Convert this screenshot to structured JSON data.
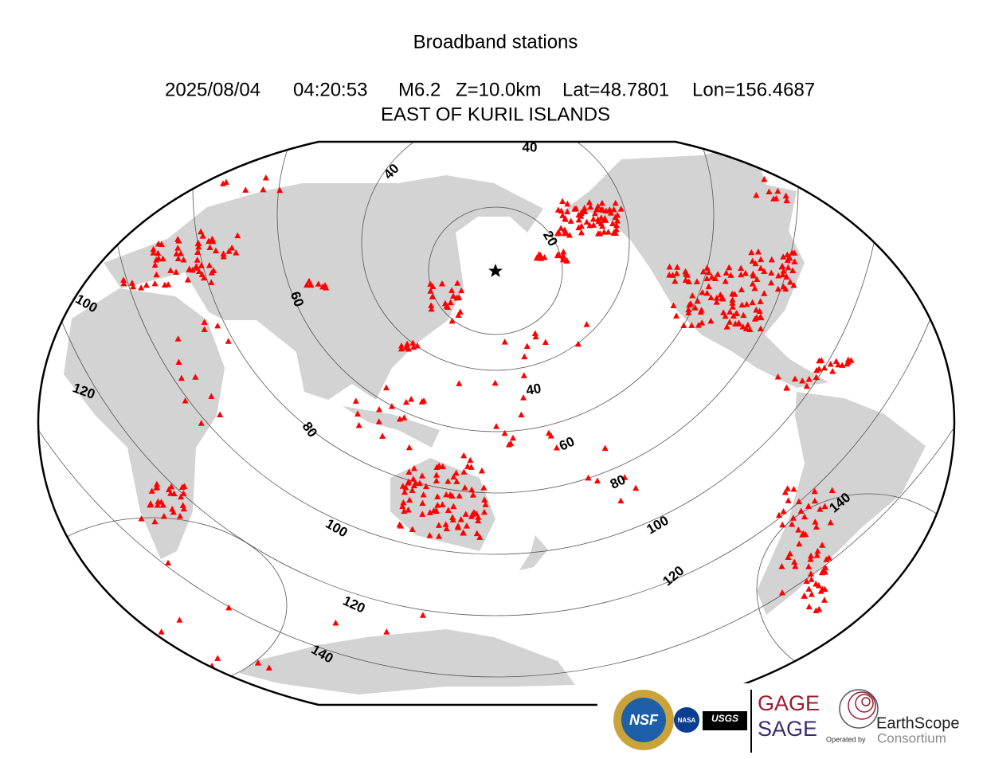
{
  "header": {
    "title": "Broadband stations",
    "event": {
      "date": "2025/08/04",
      "time": "04:20:53",
      "magnitude": "M6.2",
      "depth": "Z=10.0km",
      "latitude": "Lat=48.7801",
      "longitude": "Lon=156.4687"
    },
    "region": "EAST OF KURIL ISLANDS"
  },
  "map": {
    "distance_contours": [
      20,
      40,
      60,
      80,
      100,
      120,
      140
    ]
  },
  "logos": {
    "nsf": "NSF",
    "nasa": "NASA",
    "usgs": "USGS",
    "gage": "GAGE",
    "sage": "SAGE",
    "operated_by": "Operated by",
    "earthscope": "EarthScope",
    "consortium": "Consortium"
  }
}
